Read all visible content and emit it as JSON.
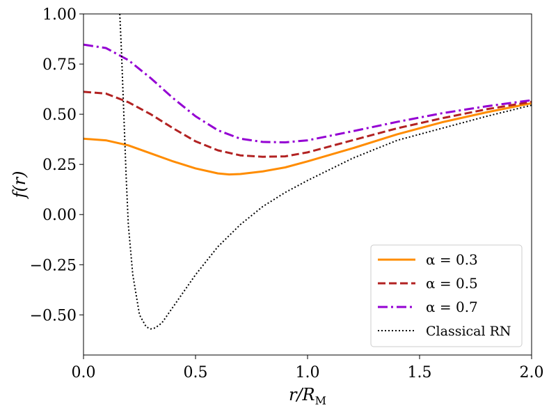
{
  "chart_data": {
    "type": "line",
    "title": "",
    "xlabel": "r/R_M",
    "xlabel_main": "r/R",
    "xlabel_sub": "M",
    "ylabel": "f(r)",
    "xlim": [
      0.0,
      2.0
    ],
    "ylim": [
      -0.7,
      1.0
    ],
    "xticks": [
      0.0,
      0.5,
      1.0,
      1.5,
      2.0
    ],
    "xtick_labels": [
      "0.0",
      "0.5",
      "1.0",
      "1.5",
      "2.0"
    ],
    "yticks": [
      1.0,
      0.75,
      0.5,
      0.25,
      0.0,
      -0.25,
      -0.5
    ],
    "ytick_labels": [
      "1.00",
      "0.75",
      "0.50",
      "0.25",
      "0.00",
      "−0.25",
      "−0.50"
    ],
    "grid": false,
    "legend_position": "lower-right",
    "series": [
      {
        "name": "α = 0.3",
        "color": "#ff8c00",
        "style": "solid",
        "x": [
          0.0,
          0.1,
          0.2,
          0.3,
          0.4,
          0.5,
          0.6,
          0.65,
          0.7,
          0.8,
          0.9,
          1.0,
          1.2,
          1.4,
          1.5,
          1.6,
          1.8,
          2.0
        ],
        "y": [
          0.378,
          0.37,
          0.345,
          0.305,
          0.265,
          0.23,
          0.205,
          0.2,
          0.202,
          0.215,
          0.235,
          0.265,
          0.33,
          0.4,
          0.43,
          0.46,
          0.51,
          0.555
        ]
      },
      {
        "name": "α = 0.5",
        "color": "#b22222",
        "style": "dashed",
        "x": [
          0.0,
          0.1,
          0.2,
          0.3,
          0.4,
          0.5,
          0.6,
          0.7,
          0.8,
          0.9,
          1.0,
          1.2,
          1.4,
          1.6,
          1.8,
          2.0
        ],
        "y": [
          0.612,
          0.603,
          0.56,
          0.5,
          0.43,
          0.365,
          0.32,
          0.295,
          0.288,
          0.29,
          0.31,
          0.37,
          0.43,
          0.48,
          0.525,
          0.562
        ]
      },
      {
        "name": "α = 0.7",
        "color": "#9400d3",
        "style": "dashdot",
        "x": [
          0.0,
          0.1,
          0.2,
          0.3,
          0.4,
          0.5,
          0.6,
          0.7,
          0.8,
          0.9,
          1.0,
          1.2,
          1.4,
          1.6,
          1.8,
          2.0
        ],
        "y": [
          0.847,
          0.83,
          0.77,
          0.68,
          0.58,
          0.49,
          0.42,
          0.378,
          0.362,
          0.36,
          0.37,
          0.415,
          0.462,
          0.505,
          0.54,
          0.57
        ]
      },
      {
        "name": "Classical RN",
        "color": "#000000",
        "style": "dotted",
        "x": [
          0.162,
          0.17,
          0.18,
          0.19,
          0.2,
          0.22,
          0.25,
          0.28,
          0.3,
          0.32,
          0.35,
          0.4,
          0.5,
          0.6,
          0.7,
          0.8,
          0.9,
          1.0,
          1.2,
          1.4,
          1.6,
          1.8,
          2.0
        ],
        "y": [
          1.0,
          0.8,
          0.5,
          0.2,
          -0.05,
          -0.3,
          -0.5,
          -0.56,
          -0.57,
          -0.565,
          -0.54,
          -0.46,
          -0.3,
          -0.16,
          -0.05,
          0.04,
          0.11,
          0.17,
          0.28,
          0.37,
          0.43,
          0.49,
          0.545
        ]
      }
    ]
  }
}
